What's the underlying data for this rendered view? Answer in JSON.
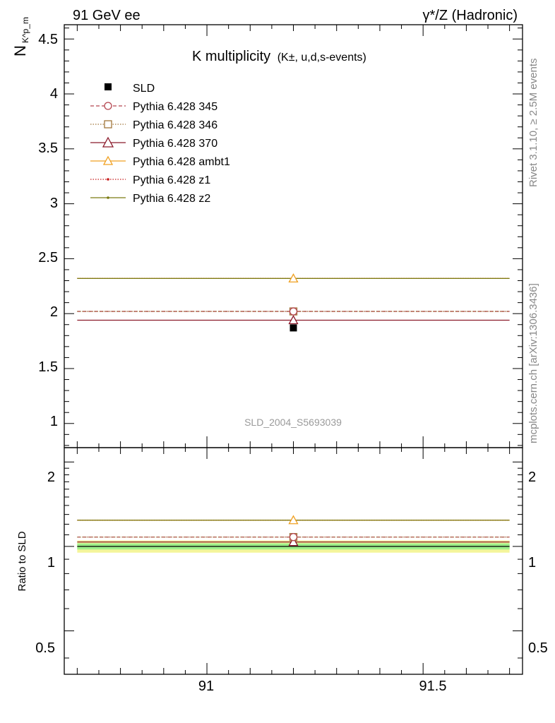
{
  "header": {
    "left": "91 GeV ee",
    "right": "γ*/Z (Hadronic)"
  },
  "side_labels": {
    "rivet": "Rivet 3.1.10, ≥ 2.5M events",
    "mcplots": "mcplots.cern.ch [arXiv:1306.3436]"
  },
  "chart_data": [
    {
      "type": "scatter",
      "title": "K multiplicity",
      "title_sub": "(K±, u,d,s-events)",
      "ylabel": "N",
      "ylabel_sub": "K^p_m",
      "analysis_id": "SLD_2004_S5693039",
      "xlim": [
        90.67,
        91.73
      ],
      "ylim": [
        0.78,
        4.63
      ],
      "x_ticks": [
        "91",
        "91.5"
      ],
      "y_ticks": [
        "1",
        "1.5",
        "2",
        "2.5",
        "3",
        "3.5",
        "4",
        "4.5"
      ],
      "bin": {
        "x_low": 90.7,
        "x_high": 91.7,
        "x_center": 91.2
      },
      "legend_position": "top-left",
      "series": [
        {
          "name": "SLD",
          "y": 1.87,
          "color": "#000000",
          "marker": "square-filled",
          "line": "none"
        },
        {
          "name": "Pythia 6.428 345",
          "y": 2.02,
          "color": "#b4454f",
          "marker": "circle-open",
          "line": "dashed"
        },
        {
          "name": "Pythia 6.428 346",
          "y": 2.02,
          "color": "#a0753a",
          "marker": "square-open",
          "line": "dotted"
        },
        {
          "name": "Pythia 6.428 370",
          "y": 1.94,
          "color": "#8b1a2b",
          "marker": "triangle-open",
          "line": "solid"
        },
        {
          "name": "Pythia 6.428 ambt1",
          "y": 2.32,
          "color": "#f0a020",
          "marker": "triangle-open",
          "line": "solid"
        },
        {
          "name": "Pythia 6.428 z1",
          "y": 2.32,
          "color": "#c81e1e",
          "marker": "dot",
          "line": "dotted"
        },
        {
          "name": "Pythia 6.428 z2",
          "y": 2.32,
          "color": "#7a7a10",
          "marker": "dot",
          "line": "solid"
        }
      ]
    },
    {
      "type": "scatter",
      "ylabel": "Ratio to SLD",
      "xlim": [
        90.67,
        91.73
      ],
      "ylim": [
        0.35,
        2.25
      ],
      "y_ticks": [
        "0.5",
        "1",
        "2"
      ],
      "bands": [
        {
          "low": 0.95,
          "high": 1.05,
          "color": "#f4f59b"
        },
        {
          "low": 0.975,
          "high": 1.025,
          "color": "#9ef08a"
        }
      ],
      "series": [
        {
          "name": "Pythia 6.428 345",
          "y": 1.08,
          "color": "#b4454f",
          "marker": "circle-open",
          "line": "dashed"
        },
        {
          "name": "Pythia 6.428 346",
          "y": 1.08,
          "color": "#a0753a",
          "marker": "square-open",
          "line": "dotted"
        },
        {
          "name": "Pythia 6.428 370",
          "y": 1.037,
          "color": "#8b1a2b",
          "marker": "triangle-open",
          "line": "solid"
        },
        {
          "name": "Pythia 6.428 ambt1",
          "y": 1.24,
          "color": "#f0a020",
          "marker": "triangle-open",
          "line": "solid"
        },
        {
          "name": "Pythia 6.428 z1",
          "y": 1.24,
          "color": "#c81e1e",
          "marker": "dot",
          "line": "dotted"
        },
        {
          "name": "Pythia 6.428 z2",
          "y": 1.24,
          "color": "#7a7a10",
          "marker": "dot",
          "line": "solid"
        }
      ]
    }
  ]
}
